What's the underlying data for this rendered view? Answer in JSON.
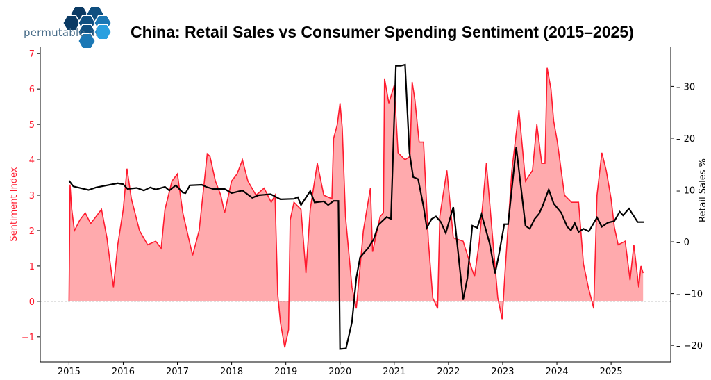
{
  "brand": {
    "name": "permutable.ai",
    "colors": [
      "#0b3a63",
      "#0f4f80",
      "#1b78b5",
      "#2aa0e0"
    ]
  },
  "chart_data": {
    "type": "line",
    "title": "China: Retail Sales vs Consumer Spending Sentiment (2015–2025)",
    "xlim": [
      2014.47,
      2026.1
    ],
    "x_ticks": [
      "2015",
      "2016",
      "2017",
      "2018",
      "2019",
      "2020",
      "2021",
      "2022",
      "2023",
      "2024",
      "2025"
    ],
    "left_axis": {
      "label": "Sentiment Index",
      "ylim": [
        -1.71,
        7.2
      ],
      "ticks": [
        -1,
        0,
        1,
        2,
        3,
        4,
        5,
        6,
        7
      ],
      "tick_labels": [
        "−1",
        "0",
        "1",
        "2",
        "3",
        "4",
        "5",
        "6",
        "7"
      ],
      "color": "#ff1a2e"
    },
    "right_axis": {
      "label": "Retail Sales %",
      "ylim": [
        -23.2,
        37.7
      ],
      "ticks": [
        -20,
        -10,
        0,
        10,
        20,
        30
      ],
      "tick_labels": [
        "−20",
        "−10",
        "0",
        "10",
        "20",
        "30"
      ],
      "color": "#000000"
    },
    "zero_line": {
      "style": "dashed",
      "color": "#888888"
    },
    "grid": false,
    "series": [
      {
        "axis": "left",
        "color": "#ff1a2e",
        "fill": "#ffaaad",
        "style": "area",
        "x": [
          2015.0,
          2015.02,
          2015.05,
          2015.1,
          2015.2,
          2015.3,
          2015.4,
          2015.5,
          2015.6,
          2015.7,
          2015.75,
          2015.82,
          2015.9,
          2016.0,
          2016.07,
          2016.15,
          2016.3,
          2016.45,
          2016.6,
          2016.7,
          2016.77,
          2016.9,
          2017.0,
          2017.1,
          2017.28,
          2017.4,
          2017.55,
          2017.6,
          2017.7,
          2017.8,
          2017.87,
          2018.0,
          2018.1,
          2018.2,
          2018.3,
          2018.45,
          2018.6,
          2018.73,
          2018.8,
          2018.85,
          2018.9,
          2018.98,
          2019.05,
          2019.08,
          2019.15,
          2019.28,
          2019.37,
          2019.45,
          2019.58,
          2019.7,
          2019.85,
          2019.88,
          2019.95,
          2020.0,
          2020.04,
          2020.1,
          2020.22,
          2020.3,
          2020.43,
          2020.56,
          2020.6,
          2020.74,
          2020.8,
          2020.82,
          2020.9,
          2021.0,
          2021.07,
          2021.2,
          2021.29,
          2021.33,
          2021.38,
          2021.46,
          2021.54,
          2021.63,
          2021.71,
          2021.8,
          2021.84,
          2021.97,
          2022.09,
          2022.27,
          2022.4,
          2022.48,
          2022.57,
          2022.7,
          2022.82,
          2022.91,
          2022.99,
          2023.05,
          2023.17,
          2023.3,
          2023.42,
          2023.55,
          2023.63,
          2023.72,
          2023.78,
          2023.82,
          2023.89,
          2023.94,
          2024.01,
          2024.14,
          2024.27,
          2024.4,
          2024.49,
          2024.58,
          2024.68,
          2024.74,
          2024.83,
          2024.91,
          2025.0,
          2025.06,
          2025.13,
          2025.26,
          2025.35,
          2025.42,
          2025.51,
          2025.55,
          2025.59
        ],
        "y": [
          0,
          3.3,
          2.6,
          2.0,
          2.3,
          2.5,
          2.2,
          2.4,
          2.6,
          1.8,
          1.2,
          0.4,
          1.6,
          2.6,
          3.75,
          2.9,
          2.0,
          1.6,
          1.7,
          1.5,
          2.6,
          3.4,
          3.6,
          2.5,
          1.3,
          2.0,
          4.17,
          4.1,
          3.4,
          3.0,
          2.5,
          3.4,
          3.6,
          4.0,
          3.4,
          3.0,
          3.2,
          2.8,
          3.0,
          0.2,
          -0.6,
          -1.3,
          -0.8,
          2.3,
          2.8,
          2.6,
          0.8,
          2.6,
          3.9,
          3.0,
          2.9,
          4.6,
          5.0,
          5.6,
          4.9,
          2.4,
          0.4,
          -0.2,
          2.0,
          3.2,
          1.4,
          2.4,
          2.5,
          6.3,
          5.6,
          6.1,
          4.2,
          4.0,
          4.1,
          6.2,
          5.7,
          4.5,
          4.5,
          1.7,
          0.1,
          -0.2,
          2.4,
          3.7,
          1.8,
          1.7,
          1.06,
          0.7,
          1.7,
          3.9,
          1.7,
          0.1,
          -0.5,
          1.0,
          3.7,
          5.4,
          3.4,
          3.7,
          5.0,
          3.9,
          3.9,
          6.6,
          6.0,
          5.1,
          4.5,
          3.0,
          2.8,
          2.8,
          1.06,
          0.4,
          -0.2,
          3.0,
          4.2,
          3.7,
          2.9,
          2.1,
          1.6,
          1.7,
          0.6,
          1.6,
          0.4,
          1.0,
          0.8
        ]
      },
      {
        "axis": "right",
        "color": "#000000",
        "style": "line",
        "x": [
          2015.0,
          2015.08,
          2015.36,
          2015.5,
          2015.9,
          2016.0,
          2016.08,
          2016.25,
          2016.38,
          2016.5,
          2016.6,
          2016.77,
          2016.85,
          2016.97,
          2017.1,
          2017.15,
          2017.23,
          2017.45,
          2017.53,
          2017.66,
          2017.87,
          2018.0,
          2018.2,
          2018.38,
          2018.5,
          2018.72,
          2018.9,
          2019.15,
          2019.22,
          2019.28,
          2019.45,
          2019.53,
          2019.7,
          2019.78,
          2019.88,
          2019.97,
          2020.0,
          2020.11,
          2020.22,
          2020.3,
          2020.37,
          2020.52,
          2020.62,
          2020.71,
          2020.86,
          2020.94,
          2021.03,
          2021.12,
          2021.2,
          2021.28,
          2021.35,
          2021.44,
          2021.54,
          2021.6,
          2021.69,
          2021.77,
          2021.86,
          2021.95,
          2022.09,
          2022.27,
          2022.35,
          2022.44,
          2022.53,
          2022.61,
          2022.76,
          2022.86,
          2022.93,
          2023.03,
          2023.1,
          2023.25,
          2023.42,
          2023.5,
          2023.59,
          2023.67,
          2023.74,
          2023.85,
          2023.94,
          2024.08,
          2024.19,
          2024.26,
          2024.33,
          2024.4,
          2024.49,
          2024.59,
          2024.74,
          2024.83,
          2024.94,
          2025.06,
          2025.16,
          2025.22,
          2025.33,
          2025.49,
          2025.6
        ],
        "y": [
          11.8,
          10.7,
          10.0,
          10.5,
          11.3,
          11.1,
          10.2,
          10.4,
          9.9,
          10.5,
          10.1,
          10.6,
          9.9,
          10.9,
          9.5,
          9.4,
          10.9,
          11.0,
          10.6,
          10.2,
          10.2,
          9.4,
          9.9,
          8.5,
          9.0,
          9.2,
          8.2,
          8.3,
          8.6,
          7.1,
          9.8,
          7.6,
          7.8,
          7.1,
          7.9,
          7.9,
          -20.7,
          -20.6,
          -15.5,
          -7.0,
          -3.0,
          -1.2,
          0.5,
          3.3,
          4.8,
          4.4,
          34.0,
          34.0,
          34.2,
          17.2,
          12.5,
          12.1,
          6.8,
          2.7,
          4.4,
          4.9,
          3.8,
          1.7,
          6.7,
          -11.2,
          -7.0,
          3.1,
          2.7,
          5.3,
          -0.3,
          -6.1,
          -2.5,
          3.4,
          3.4,
          18.3,
          3.1,
          2.5,
          4.4,
          5.4,
          7.0,
          10.1,
          7.4,
          5.6,
          2.9,
          2.2,
          3.6,
          1.9,
          2.5,
          2.0,
          4.7,
          2.9,
          3.7,
          4.0,
          5.8,
          5.1,
          6.4,
          3.8,
          3.8
        ]
      }
    ]
  }
}
